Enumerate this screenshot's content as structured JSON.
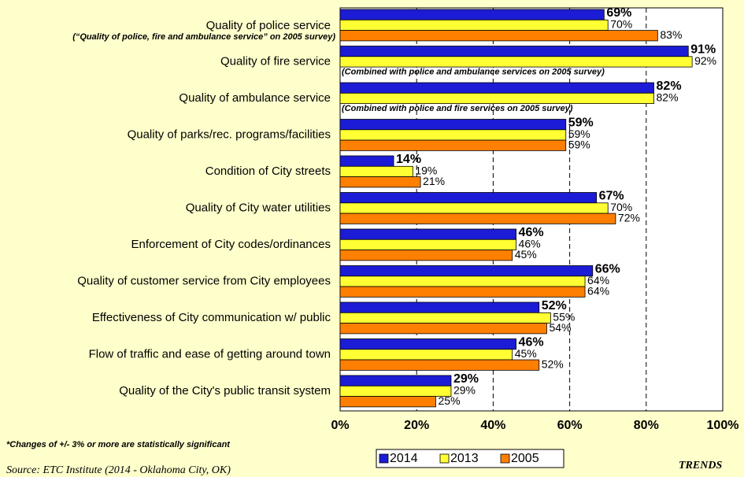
{
  "chart_data": {
    "type": "bar",
    "orientation": "horizontal",
    "categories": [
      "Quality of police service",
      "Quality of fire service",
      "Quality of ambulance service",
      "Quality of parks/rec. programs/facilities",
      "Condition of City streets",
      "Quality of City water utilities",
      "Enforcement of City codes/ordinances",
      "Quality of customer service from City employees",
      "Effectiveness of City communication w/ public",
      "Flow of traffic and ease of getting around town",
      "Quality of the City's public transit system"
    ],
    "series": [
      {
        "name": "2014",
        "color": "#1c1cd6",
        "values": [
          69,
          91,
          82,
          59,
          14,
          67,
          46,
          66,
          52,
          46,
          29
        ],
        "value_labels": [
          "69%",
          "91%",
          "82%",
          "59%",
          "14%",
          "67%",
          "46%",
          "66%",
          "52%",
          "46%",
          "29%"
        ]
      },
      {
        "name": "2013",
        "color": "#ffff33",
        "values": [
          70,
          92,
          82,
          59,
          19,
          70,
          46,
          64,
          55,
          45,
          29
        ],
        "value_labels": [
          "70%",
          "92%",
          "82%",
          "59%",
          "19%",
          "70%",
          "46%",
          "64%",
          "55%",
          "45%",
          "29%"
        ]
      },
      {
        "name": "2005",
        "color": "#ff7f00",
        "values": [
          83,
          null,
          null,
          59,
          21,
          72,
          45,
          64,
          54,
          52,
          25
        ],
        "value_labels": [
          "83%",
          null,
          null,
          "59%",
          "21%",
          "72%",
          "45%",
          "64%",
          "54%",
          "52%",
          "25%"
        ]
      }
    ],
    "annotations": [
      "(“Quality of police, fire and ambulance service” on 2005 survey)",
      "(Combined with police and ambulance services on 2005 survey)",
      "(Combined with police and fire services on 2005 survey)"
    ],
    "xlim": [
      0,
      100
    ],
    "xticks": [
      {
        "value": 0,
        "label": "0%"
      },
      {
        "value": 20,
        "label": "20%"
      },
      {
        "value": 40,
        "label": "40%"
      },
      {
        "value": 60,
        "label": "60%"
      },
      {
        "value": 80,
        "label": "80%"
      },
      {
        "value": 100,
        "label": "100%"
      }
    ],
    "grid": true,
    "legend": "bottom",
    "footnote": "*Changes of +/- 3% or more are statistically significant",
    "source": "Source: ETC Institute (2014 - Oklahoma City, OK)",
    "brand": "TRENDS"
  }
}
